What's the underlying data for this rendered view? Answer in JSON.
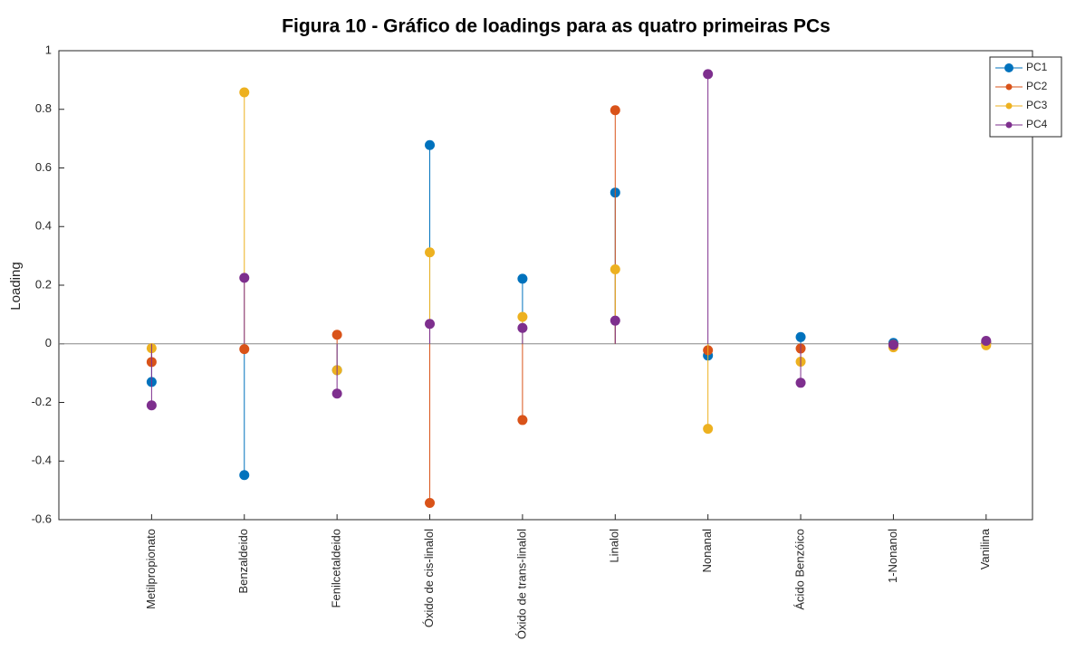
{
  "chart_data": {
    "type": "stem",
    "title": "Figura 10 - Gráfico de loadings para as quatro primeiras PCs",
    "y_label": "Loading",
    "categories": [
      "Metilpropionato",
      "Benzaldeido",
      "Fenilcetaldeido",
      "Óxido de cis-linalol",
      "Óxido de trans-linalol",
      "Linalol",
      "Nonanal",
      "Ácido Benzóico",
      "1-Nonanol",
      "Vanilina"
    ],
    "series": [
      {
        "name": "PC1",
        "color": "#0072bd",
        "values": [
          -0.13,
          -0.448,
          -0.09,
          0.678,
          0.222,
          0.516,
          -0.04,
          0.023,
          0.003,
          0.005
        ]
      },
      {
        "name": "PC2",
        "color": "#d95319",
        "values": [
          -0.062,
          -0.018,
          0.031,
          -0.543,
          -0.26,
          0.797,
          -0.022,
          -0.016,
          -0.003,
          0.003
        ]
      },
      {
        "name": "PC3",
        "color": "#edb120",
        "values": [
          -0.015,
          0.858,
          -0.09,
          0.312,
          0.092,
          0.254,
          -0.29,
          -0.061,
          -0.012,
          -0.005
        ]
      },
      {
        "name": "PC4",
        "color": "#7e2f8e",
        "values": [
          -0.21,
          0.225,
          -0.17,
          0.068,
          0.054,
          0.079,
          0.92,
          -0.133,
          -0.004,
          0.01
        ]
      }
    ],
    "ylim": [
      -0.6,
      1
    ],
    "yticks": [
      -0.6,
      -0.4,
      -0.2,
      0,
      0.2,
      0.4,
      0.6,
      0.8,
      1
    ],
    "legend": "top-right"
  }
}
